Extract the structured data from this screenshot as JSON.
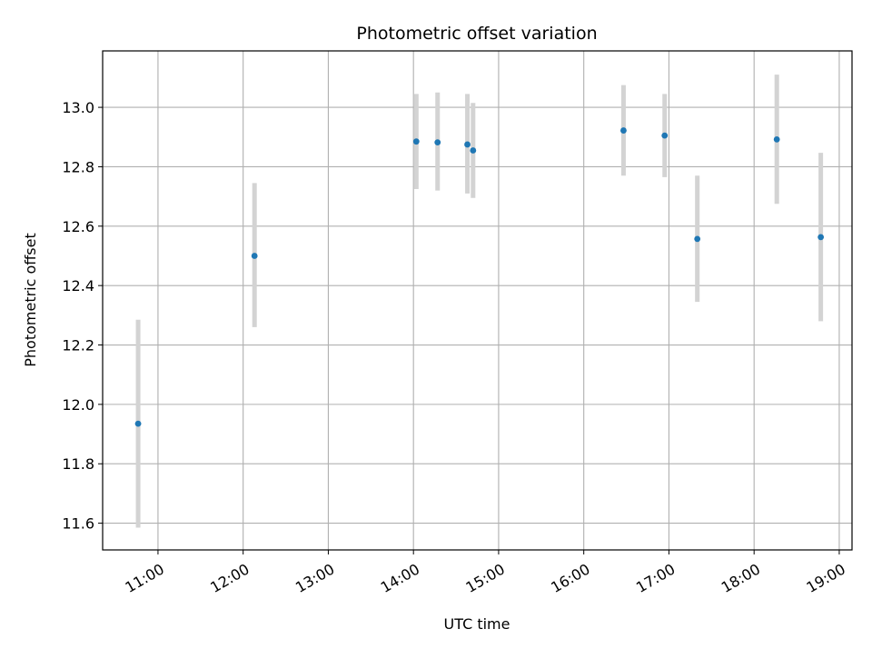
{
  "chart_data": {
    "type": "scatter",
    "title": "Photometric offset variation",
    "xlabel": "UTC time",
    "ylabel": "Photometric offset",
    "xlim": [
      "10:21",
      "19:09"
    ],
    "ylim": [
      11.51,
      13.19
    ],
    "x_ticks": [
      "11:00",
      "12:00",
      "13:00",
      "14:00",
      "15:00",
      "16:00",
      "17:00",
      "18:00",
      "19:00"
    ],
    "y_ticks": [
      "11.6",
      "11.8",
      "12.0",
      "12.2",
      "12.4",
      "12.6",
      "12.8",
      "13.0"
    ],
    "grid": true,
    "legend": "none",
    "marker_color": "#1f77b4",
    "errorbar_color": "#d3d3d3",
    "grid_color": "#b0b0b0",
    "points": [
      {
        "x": "10:46",
        "y": 11.935,
        "yerr_low": 11.585,
        "yerr_high": 12.285
      },
      {
        "x": "12:08",
        "y": 12.5,
        "yerr_low": 12.26,
        "yerr_high": 12.745
      },
      {
        "x": "14:02",
        "y": 12.885,
        "yerr_low": 12.725,
        "yerr_high": 13.045
      },
      {
        "x": "14:17",
        "y": 12.882,
        "yerr_low": 12.72,
        "yerr_high": 13.05
      },
      {
        "x": "14:38",
        "y": 12.875,
        "yerr_low": 12.71,
        "yerr_high": 13.045
      },
      {
        "x": "14:42",
        "y": 12.855,
        "yerr_low": 12.695,
        "yerr_high": 13.015
      },
      {
        "x": "16:28",
        "y": 12.922,
        "yerr_low": 12.77,
        "yerr_high": 13.075
      },
      {
        "x": "16:57",
        "y": 12.905,
        "yerr_low": 12.765,
        "yerr_high": 13.045
      },
      {
        "x": "17:20",
        "y": 12.557,
        "yerr_low": 12.345,
        "yerr_high": 12.77
      },
      {
        "x": "18:16",
        "y": 12.892,
        "yerr_low": 12.675,
        "yerr_high": 13.11
      },
      {
        "x": "18:47",
        "y": 12.563,
        "yerr_low": 12.28,
        "yerr_high": 12.847
      }
    ]
  }
}
